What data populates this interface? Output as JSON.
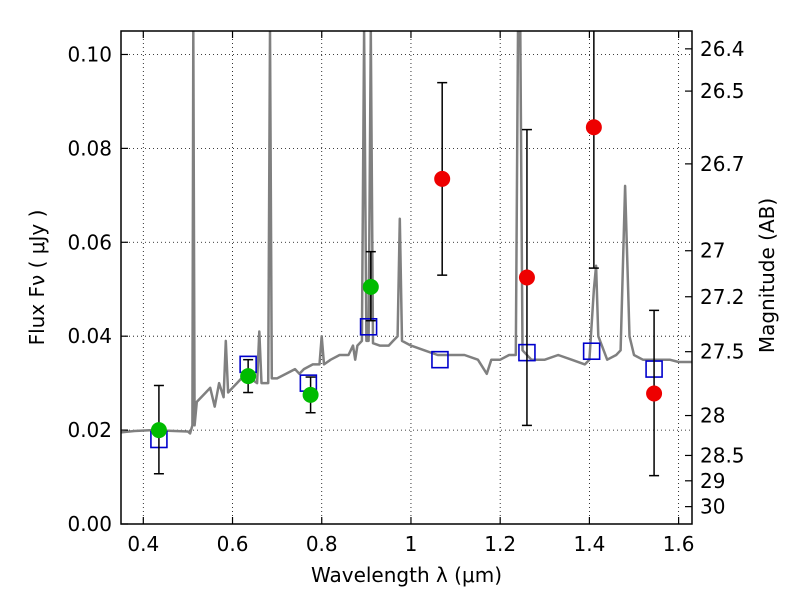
{
  "chart_data": {
    "type": "scatter",
    "xlabel": "Wavelength  λ (μm)",
    "ylabel": "Flux  Fν  ( μJy )",
    "ylabel_right": "Magnitude (AB)",
    "xlim": [
      0.35,
      1.63
    ],
    "ylim": [
      0.0,
      0.105
    ],
    "grid": true,
    "x_ticks": [
      0.4,
      0.6,
      0.8,
      1.0,
      1.2,
      1.4,
      1.6
    ],
    "x_tick_labels": [
      "0.4",
      "0.6",
      "0.8",
      "1",
      "1.2",
      "1.4",
      "1.6"
    ],
    "y_ticks": [
      0.0,
      0.02,
      0.04,
      0.06,
      0.08,
      0.1
    ],
    "y_tick_labels": [
      "0.00",
      "0.02",
      "0.04",
      "0.06",
      "0.08",
      "0.10"
    ],
    "right_ticks": [
      {
        "label": "26.4",
        "flux": 0.1012
      },
      {
        "label": "26.5",
        "flux": 0.0922
      },
      {
        "label": "26.7",
        "flux": 0.0767
      },
      {
        "label": "27",
        "flux": 0.0582
      },
      {
        "label": "27.2",
        "flux": 0.0484
      },
      {
        "label": "27.5",
        "flux": 0.0367
      },
      {
        "label": "28",
        "flux": 0.0231
      },
      {
        "label": "28.5",
        "flux": 0.0146
      },
      {
        "label": "29",
        "flux": 0.0092
      },
      {
        "label": "30",
        "flux": 0.0037
      }
    ],
    "template_spectrum": {
      "color": "#808080",
      "points": [
        [
          0.35,
          0.0195
        ],
        [
          0.38,
          0.0198
        ],
        [
          0.42,
          0.02
        ],
        [
          0.47,
          0.0198
        ],
        [
          0.5,
          0.0197
        ],
        [
          0.505,
          0.0193
        ],
        [
          0.51,
          0.021
        ],
        [
          0.512,
          0.105
        ],
        [
          0.515,
          0.021
        ],
        [
          0.52,
          0.026
        ],
        [
          0.54,
          0.028
        ],
        [
          0.55,
          0.029
        ],
        [
          0.56,
          0.025
        ],
        [
          0.57,
          0.03
        ],
        [
          0.58,
          0.027
        ],
        [
          0.585,
          0.039
        ],
        [
          0.59,
          0.028
        ],
        [
          0.6,
          0.029
        ],
        [
          0.61,
          0.03
        ],
        [
          0.62,
          0.031
        ],
        [
          0.63,
          0.031
        ],
        [
          0.64,
          0.031
        ],
        [
          0.655,
          0.03
        ],
        [
          0.66,
          0.041
        ],
        [
          0.665,
          0.03
        ],
        [
          0.675,
          0.03
        ],
        [
          0.68,
          0.03
        ],
        [
          0.684,
          0.105
        ],
        [
          0.688,
          0.031
        ],
        [
          0.7,
          0.031
        ],
        [
          0.72,
          0.032
        ],
        [
          0.74,
          0.033
        ],
        [
          0.75,
          0.032
        ],
        [
          0.76,
          0.033
        ],
        [
          0.78,
          0.034
        ],
        [
          0.795,
          0.034
        ],
        [
          0.8,
          0.04
        ],
        [
          0.805,
          0.034
        ],
        [
          0.82,
          0.035
        ],
        [
          0.84,
          0.036
        ],
        [
          0.86,
          0.036
        ],
        [
          0.87,
          0.038
        ],
        [
          0.875,
          0.035
        ],
        [
          0.88,
          0.038
        ],
        [
          0.89,
          0.039
        ],
        [
          0.895,
          0.105
        ],
        [
          0.9,
          0.039
        ],
        [
          0.905,
          0.039
        ],
        [
          0.91,
          0.105
        ],
        [
          0.915,
          0.0385
        ],
        [
          0.93,
          0.038
        ],
        [
          0.95,
          0.038
        ],
        [
          0.96,
          0.039
        ],
        [
          0.97,
          0.04
        ],
        [
          0.975,
          0.065
        ],
        [
          0.98,
          0.039
        ],
        [
          1.0,
          0.038
        ],
        [
          1.03,
          0.037
        ],
        [
          1.06,
          0.036
        ],
        [
          1.09,
          0.036
        ],
        [
          1.12,
          0.036
        ],
        [
          1.15,
          0.035
        ],
        [
          1.17,
          0.032
        ],
        [
          1.18,
          0.035
        ],
        [
          1.2,
          0.035
        ],
        [
          1.22,
          0.036
        ],
        [
          1.235,
          0.036
        ],
        [
          1.24,
          0.105
        ],
        [
          1.245,
          0.105
        ],
        [
          1.25,
          0.037
        ],
        [
          1.27,
          0.035
        ],
        [
          1.3,
          0.035
        ],
        [
          1.33,
          0.036
        ],
        [
          1.36,
          0.035
        ],
        [
          1.39,
          0.034
        ],
        [
          1.4,
          0.035
        ],
        [
          1.41,
          0.05
        ],
        [
          1.415,
          0.055
        ],
        [
          1.42,
          0.04
        ],
        [
          1.44,
          0.035
        ],
        [
          1.46,
          0.036
        ],
        [
          1.47,
          0.037
        ],
        [
          1.48,
          0.072
        ],
        [
          1.49,
          0.04
        ],
        [
          1.5,
          0.036
        ],
        [
          1.52,
          0.035
        ],
        [
          1.55,
          0.035
        ],
        [
          1.58,
          0.035
        ],
        [
          1.6,
          0.0345
        ],
        [
          1.63,
          0.0345
        ]
      ]
    },
    "series": [
      {
        "name": "",
        "marker": "open-square",
        "color": "#0000cc",
        "x": [
          0.435,
          0.635,
          0.77,
          0.905,
          1.065,
          1.26,
          1.405,
          1.545
        ],
        "y": [
          0.018,
          0.034,
          0.03,
          0.042,
          0.035,
          0.0365,
          0.0368,
          0.033
        ]
      },
      {
        "name": "",
        "marker": "filled-circle",
        "color": "#00bb00",
        "x": [
          0.435,
          0.635,
          0.775,
          0.91
        ],
        "y": [
          0.02,
          0.0315,
          0.0275,
          0.0505
        ],
        "err_low": [
          0.0107,
          0.028,
          0.0237,
          0.0433
        ],
        "err_high": [
          0.0295,
          0.035,
          0.0313,
          0.058
        ]
      },
      {
        "name": "",
        "marker": "filled-circle",
        "color": "#ee0000",
        "x": [
          1.07,
          1.26,
          1.41,
          1.545
        ],
        "y": [
          0.0735,
          0.0525,
          0.0845,
          0.0278
        ],
        "err_low": [
          0.053,
          0.021,
          0.0545,
          0.0103
        ],
        "err_high": [
          0.094,
          0.084,
          0.105,
          0.0455
        ]
      }
    ]
  }
}
